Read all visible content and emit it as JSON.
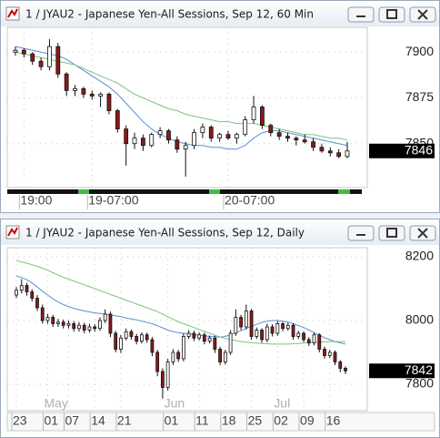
{
  "chart_data": [
    {
      "type": "candlestick",
      "title": "1 / JYAU2 - Japanese Yen-All Sessions, Sep 12, 60 Min",
      "categories": [
        null,
        "19:00",
        null,
        null,
        null,
        null,
        null,
        null,
        null,
        "19-07:00",
        null,
        null,
        null,
        null,
        null,
        null,
        null,
        null,
        null,
        null,
        null,
        null,
        null,
        null,
        null,
        "20-07:00",
        null,
        null,
        null,
        null,
        null,
        null,
        null,
        null,
        null,
        null,
        null,
        null,
        null,
        null
      ],
      "open": [
        7900,
        7901,
        7899,
        7895,
        7892,
        7903,
        7888,
        7879,
        7880,
        7877,
        7876,
        7877,
        7868,
        7858,
        7850,
        7853,
        7849,
        7855,
        7857,
        7852,
        7847,
        7849,
        7856,
        7859,
        7853,
        7855,
        7853,
        7855,
        7863,
        7870,
        7860,
        7856,
        7854,
        7853,
        7852,
        7851,
        7848,
        7846,
        7845,
        7843
      ],
      "high": [
        7903,
        7902,
        7900,
        7897,
        7907,
        7905,
        7889,
        7882,
        7881,
        7879,
        7878,
        7878,
        7869,
        7860,
        7856,
        7855,
        7856,
        7859,
        7858,
        7854,
        7851,
        7858,
        7861,
        7860,
        7856,
        7857,
        7856,
        7865,
        7876,
        7871,
        7861,
        7858,
        7856,
        7854,
        7855,
        7853,
        7850,
        7848,
        7847,
        7851
      ],
      "low": [
        7898,
        7897,
        7893,
        7890,
        7890,
        7886,
        7876,
        7876,
        7875,
        7874,
        7870,
        7866,
        7856,
        7838,
        7847,
        7846,
        7848,
        7853,
        7850,
        7845,
        7832,
        7847,
        7853,
        7851,
        7851,
        7852,
        7850,
        7854,
        7861,
        7858,
        7854,
        7852,
        7851,
        7849,
        7850,
        7846,
        7845,
        7843,
        7842,
        7842
      ],
      "close": [
        7901,
        7899,
        7895,
        7892,
        7903,
        7888,
        7879,
        7880,
        7877,
        7876,
        7877,
        7868,
        7858,
        7850,
        7853,
        7849,
        7855,
        7857,
        7852,
        7847,
        7849,
        7856,
        7859,
        7853,
        7855,
        7853,
        7855,
        7863,
        7870,
        7860,
        7856,
        7854,
        7853,
        7852,
        7851,
        7848,
        7846,
        7845,
        7843,
        7846
      ],
      "lines": [
        {
          "color": "#5b8fd6",
          "values": [
            7903,
            7902,
            7901,
            7900,
            7899,
            7898,
            7896,
            7893,
            7890,
            7887,
            7884,
            7881,
            7877,
            7872,
            7867,
            7862,
            7858,
            7855,
            7853,
            7851,
            7850,
            7849,
            7849,
            7848,
            7848,
            7847,
            7847,
            7849,
            7853,
            7856,
            7857,
            7857,
            7856,
            7855,
            7854,
            7853,
            7852,
            7851,
            7850,
            7849
          ]
        },
        {
          "color": "#7cc47c",
          "values": [
            7900,
            7899,
            7898,
            7897,
            7896,
            7895,
            7894,
            7893,
            7891,
            7889,
            7887,
            7885,
            7883,
            7880,
            7877,
            7875,
            7873,
            7871,
            7869,
            7868,
            7866,
            7865,
            7864,
            7863,
            7862,
            7862,
            7861,
            7861,
            7861,
            7860,
            7859,
            7858,
            7857,
            7856,
            7855,
            7855,
            7854,
            7853,
            7853,
            7852
          ]
        }
      ],
      "up_color": "#ffffff",
      "down_color": "#8b1a1a",
      "ylim": [
        7826,
        7913.5
      ],
      "yticks": [
        7850,
        7875,
        7900
      ],
      "grid": true
    },
    {
      "type": "candlestick",
      "title": "1 / JYAU2 - Japanese Yen-All Sessions, Sep 12, Daily",
      "categories": [
        "23",
        null,
        null,
        null,
        null,
        null,
        "01",
        null,
        null,
        null,
        "07",
        null,
        null,
        null,
        null,
        "14",
        null,
        null,
        null,
        null,
        "21",
        null,
        null,
        null,
        null,
        null,
        null,
        null,
        null,
        "01",
        null,
        null,
        null,
        null,
        null,
        "11",
        null,
        null,
        null,
        null,
        "18",
        null,
        null,
        null,
        null,
        "25",
        null,
        null,
        null,
        null,
        "02",
        null,
        null,
        null,
        null,
        "09",
        null,
        null,
        null,
        null,
        "16",
        null,
        null,
        null
      ],
      "months": [
        null,
        null,
        null,
        null,
        null,
        null,
        "May",
        null,
        null,
        null,
        null,
        null,
        null,
        null,
        null,
        null,
        null,
        null,
        null,
        null,
        null,
        null,
        null,
        null,
        null,
        null,
        null,
        null,
        null,
        "Jun",
        null,
        null,
        null,
        null,
        null,
        null,
        null,
        null,
        null,
        null,
        null,
        null,
        null,
        null,
        null,
        null,
        null,
        null,
        null,
        null,
        "Jul",
        null,
        null,
        null,
        null,
        null,
        null,
        null,
        null,
        null,
        null,
        null,
        null,
        null
      ],
      "open": [
        8080,
        8095,
        8110,
        8090,
        8070,
        8040,
        8000,
        8010,
        7990,
        7995,
        7985,
        7990,
        7975,
        7985,
        7970,
        7980,
        7975,
        8000,
        8020,
        7960,
        7910,
        7945,
        7965,
        7950,
        7935,
        7955,
        7940,
        7900,
        7840,
        7790,
        7870,
        7900,
        7880,
        7950,
        7960,
        7945,
        7955,
        7935,
        7945,
        7910,
        7870,
        7900,
        7960,
        8010,
        7980,
        8030,
        7950,
        7970,
        7940,
        7980,
        7960,
        7990,
        7975,
        7985,
        7950,
        7960,
        7940,
        7930,
        7955,
        7910,
        7890,
        7900,
        7870,
        7850
      ],
      "high": [
        8105,
        8130,
        8118,
        8098,
        8080,
        8050,
        8020,
        8018,
        8005,
        8003,
        8000,
        7998,
        7995,
        7993,
        7990,
        7988,
        8010,
        8035,
        8028,
        7968,
        7955,
        7975,
        7972,
        7958,
        7963,
        7962,
        7948,
        7908,
        7850,
        7880,
        7910,
        7908,
        7960,
        7970,
        7968,
        7963,
        7962,
        7953,
        7952,
        7918,
        7908,
        7970,
        8035,
        8018,
        8050,
        8036,
        7978,
        7976,
        7990,
        7988,
        7998,
        7996,
        7993,
        7992,
        7968,
        7966,
        7948,
        7962,
        7960,
        7918,
        7908,
        7906,
        7876,
        7856
      ],
      "low": [
        8070,
        8085,
        8078,
        8060,
        8030,
        7990,
        7990,
        7980,
        7980,
        7975,
        7975,
        7965,
        7965,
        7960,
        7962,
        7965,
        7968,
        7992,
        7948,
        7900,
        7898,
        7938,
        7940,
        7925,
        7928,
        7930,
        7888,
        7825,
        7755,
        7780,
        7860,
        7870,
        7872,
        7942,
        7935,
        7938,
        7925,
        7928,
        7898,
        7860,
        7862,
        7892,
        7952,
        7970,
        7972,
        7940,
        7942,
        7930,
        7932,
        7950,
        7952,
        7966,
        7968,
        7940,
        7942,
        7932,
        7920,
        7922,
        7900,
        7880,
        7882,
        7860,
        7838,
        7832
      ],
      "close": [
        8095,
        8110,
        8090,
        8070,
        8040,
        8000,
        8010,
        7990,
        7995,
        7985,
        7990,
        7975,
        7985,
        7970,
        7980,
        7975,
        8000,
        8020,
        7960,
        7910,
        7945,
        7965,
        7950,
        7935,
        7955,
        7940,
        7900,
        7840,
        7790,
        7870,
        7900,
        7880,
        7950,
        7960,
        7945,
        7955,
        7935,
        7945,
        7910,
        7870,
        7900,
        7960,
        8010,
        7980,
        8030,
        7950,
        7970,
        7940,
        7980,
        7960,
        7990,
        7975,
        7985,
        7950,
        7960,
        7940,
        7930,
        7955,
        7910,
        7890,
        7900,
        7870,
        7850,
        7842
      ],
      "lines": [
        {
          "color": "#5b8fd6",
          "values": [
            8140,
            8135,
            8128,
            8118,
            8105,
            8092,
            8080,
            8068,
            8058,
            8050,
            8044,
            8038,
            8034,
            8030,
            8027,
            8024,
            8022,
            8020,
            8018,
            8015,
            8012,
            8008,
            8005,
            8002,
            7998,
            7994,
            7990,
            7984,
            7977,
            7970,
            7965,
            7962,
            7960,
            7958,
            7956,
            7954,
            7952,
            7950,
            7949,
            7948,
            7950,
            7955,
            7962,
            7968,
            7975,
            7982,
            7988,
            7994,
            7998,
            8000,
            8000,
            7998,
            7995,
            7990,
            7984,
            7978,
            7970,
            7962,
            7954,
            7946,
            7940,
            7934,
            7930,
            7926
          ]
        },
        {
          "color": "#7cc47c",
          "values": [
            8188,
            8184,
            8180,
            8175,
            8170,
            8164,
            8158,
            8150,
            8143,
            8136,
            8130,
            8124,
            8118,
            8112,
            8106,
            8100,
            8094,
            8088,
            8082,
            8076,
            8070,
            8064,
            8058,
            8052,
            8046,
            8040,
            8034,
            8028,
            8020,
            8012,
            8004,
            7996,
            7990,
            7984,
            7978,
            7972,
            7966,
            7960,
            7954,
            7948,
            7944,
            7940,
            7937,
            7934,
            7932,
            7930,
            7929,
            7928,
            7927,
            7926,
            7926,
            7926,
            7926,
            7927,
            7928,
            7929,
            7930,
            7931,
            7932,
            7933,
            7934,
            7934,
            7934,
            7934
          ]
        }
      ],
      "up_color": "#ffffff",
      "down_color": "#8b1a1a",
      "ylim": [
        7717,
        8228.6
      ],
      "yticks": [
        7800,
        8000,
        8200
      ],
      "grid": true
    }
  ]
}
